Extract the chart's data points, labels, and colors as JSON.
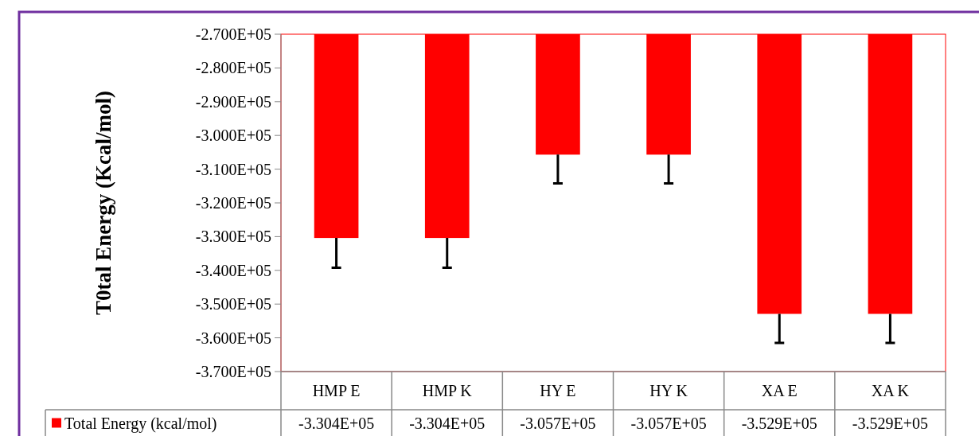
{
  "chart_data": {
    "type": "bar",
    "ylabel": "T0tal Energy (Kcal/mol)",
    "categories": [
      "HMP E",
      "HMP K",
      "HY E",
      "HY K",
      "XA E",
      "XA K"
    ],
    "series": [
      {
        "name": "Total Energy (kcal/mol)",
        "color": "#ff0000",
        "values": [
          -330400,
          -330400,
          -305700,
          -305700,
          -352900,
          -352900
        ],
        "errors": [
          [
            -339200,
            -330400
          ],
          [
            -339200,
            -330400
          ],
          [
            -314200,
            -305700
          ],
          [
            -314200,
            -305700
          ],
          [
            -361500,
            -352900
          ],
          [
            -361500,
            -352900
          ]
        ],
        "value_labels": [
          "-3.304E+05",
          "-3.304E+05",
          "-3.057E+05",
          "-3.057E+05",
          "-3.529E+05",
          "-3.529E+05"
        ]
      }
    ],
    "ylim": [
      -370000,
      -270000
    ],
    "yticks": [
      {
        "value": -370000,
        "label": "-3.700E+05"
      },
      {
        "value": -360000,
        "label": "-3.600E+05"
      },
      {
        "value": -350000,
        "label": "-3.500E+05"
      },
      {
        "value": -340000,
        "label": "-3.400E+05"
      },
      {
        "value": -330000,
        "label": "-3.300E+05"
      },
      {
        "value": -320000,
        "label": "-3.200E+05"
      },
      {
        "value": -310000,
        "label": "-3.100E+05"
      },
      {
        "value": -300000,
        "label": "-3.000E+05"
      },
      {
        "value": -290000,
        "label": "-2.900E+05"
      },
      {
        "value": -280000,
        "label": "-2.800E+05"
      },
      {
        "value": -270000,
        "label": "-2.700E+05"
      }
    ],
    "legend": "bottom"
  }
}
